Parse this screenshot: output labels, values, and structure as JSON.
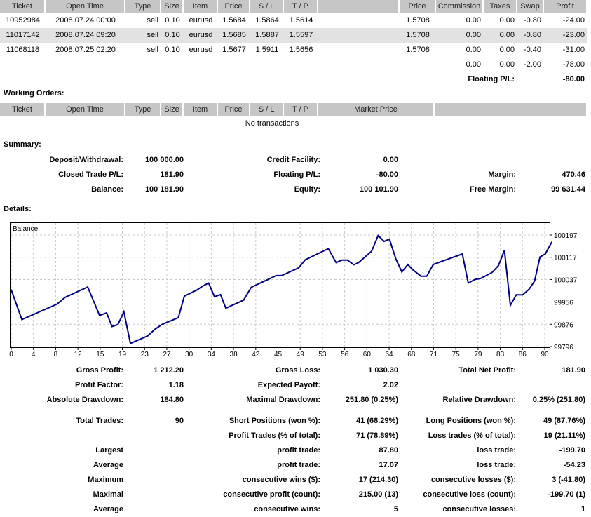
{
  "trades": {
    "headers": [
      "Ticket",
      "Open Time",
      "Type",
      "Size",
      "Item",
      "Price",
      "S / L",
      "T / P",
      "",
      "Price",
      "Commission",
      "Taxes",
      "Swap",
      "Profit"
    ],
    "rows": [
      [
        "10952984",
        "2008.07.24 00:00",
        "sell",
        "0.10",
        "eurusd",
        "1.5684",
        "1.5864",
        "1.5614",
        "",
        "1.5708",
        "0.00",
        "0.00",
        "-0.80",
        "-24.00"
      ],
      [
        "11017142",
        "2008.07.24 09:20",
        "sell",
        "0.10",
        "eurusd",
        "1.5685",
        "1.5887",
        "1.5597",
        "",
        "1.5708",
        "0.00",
        "0.00",
        "-0.80",
        "-23.00"
      ],
      [
        "11068118",
        "2008.07.25 02:20",
        "sell",
        "0.10",
        "eurusd",
        "1.5677",
        "1.5911",
        "1.5656",
        "",
        "1.5708",
        "0.00",
        "0.00",
        "-0.40",
        "-31.00"
      ]
    ],
    "totals": {
      "commission": "0.00",
      "taxes": "0.00",
      "swap": "-2.00",
      "profit": "-78.00"
    },
    "floating_label": "Floating P/L:",
    "floating_value": "-80.00"
  },
  "working_orders": {
    "title": "Working Orders:",
    "headers": [
      "Ticket",
      "Open Time",
      "Type",
      "Size",
      "Item",
      "Price",
      "S / L",
      "T / P",
      "Market Price",
      ""
    ],
    "empty_text": "No transactions"
  },
  "summary": {
    "title": "Summary:",
    "rows": [
      [
        "Deposit/Withdrawal:",
        "100 000.00",
        "Credit Facility:",
        "0.00",
        "",
        ""
      ],
      [
        "Closed Trade P/L:",
        "181.90",
        "Floating P/L:",
        "-80.00",
        "Margin:",
        "470.46"
      ],
      [
        "Balance:",
        "100 181.90",
        "Equity:",
        "100 101.90",
        "Free Margin:",
        "99 631.44"
      ]
    ]
  },
  "details": {
    "title": "Details:",
    "rows": [
      [
        "Gross Profit:",
        "1 212.20",
        "Gross Loss:",
        "1 030.30",
        "Total Net Profit:",
        "181.90"
      ],
      [
        "Profit Factor:",
        "1.18",
        "Expected Payoff:",
        "2.02",
        "",
        ""
      ],
      [
        "Absolute Drawdown:",
        "184.80",
        "Maximal Drawdown:",
        "251.80 (0.25%)",
        "Relative Drawdown:",
        "0.25% (251.80)"
      ],
      [
        "Total Trades:",
        "90",
        "Short Positions (won %):",
        "41 (68.29%)",
        "Long Positions (won %):",
        "49 (87.76%)"
      ],
      [
        "",
        "",
        "Profit Trades (% of total):",
        "71 (78.89%)",
        "Loss trades (% of total):",
        "19 (21.11%)"
      ],
      [
        "Largest",
        "",
        "profit trade:",
        "87.80",
        "loss trade:",
        "-199.70"
      ],
      [
        "Average",
        "",
        "profit trade:",
        "17.07",
        "loss trade:",
        "-54.23"
      ],
      [
        "Maximum",
        "",
        "consecutive wins ($):",
        "17 (214.30)",
        "consecutive losses ($):",
        "3 (-41.80)"
      ],
      [
        "Maximal",
        "",
        "consecutive profit (count):",
        "215.00 (13)",
        "consecutive loss (count):",
        "-199.70 (1)"
      ],
      [
        "Average",
        "",
        "consecutive wins:",
        "5",
        "consecutive losses:",
        "1"
      ]
    ]
  },
  "chart_data": {
    "type": "line",
    "title": "Balance",
    "xlabel": "",
    "ylabel": "",
    "xlim": [
      0,
      91
    ],
    "ylim": [
      99796,
      100197
    ],
    "grid": true,
    "line_color": "#000080",
    "x_ticks": [
      "0",
      "4",
      "8",
      "12",
      "15",
      "19",
      "23",
      "27",
      "30",
      "34",
      "38",
      "42",
      "45",
      "49",
      "53",
      "56",
      "60",
      "64",
      "68",
      "71",
      "75",
      "79",
      "83",
      "86",
      "90"
    ],
    "y_ticks": [
      "100197",
      "100117",
      "100037",
      "99956",
      "99876",
      "99796"
    ],
    "series": [
      {
        "name": "Balance",
        "x": [
          0,
          1.8,
          7.7,
          9.1,
          12.9,
          14.9,
          16.1,
          17,
          18,
          19,
          20.1,
          23,
          24.3,
          25.5,
          28.2,
          29.2,
          31.3,
          32.4,
          33.3,
          34.3,
          35.3,
          36.2,
          39.2,
          40.5,
          44.7,
          45.6,
          48.5,
          49.6,
          53.5,
          54.8,
          55.8,
          56.7,
          57.8,
          58.6,
          60.8,
          61.9,
          62.9,
          63.8,
          64.9,
          65.9,
          66.9,
          67.7,
          69.1,
          70.1,
          71.2,
          76.1,
          77.1,
          78.2,
          79.2,
          81.1,
          82.2,
          83.2,
          84.2,
          85.2,
          86.3,
          87.4,
          88.3,
          89.2,
          90.1,
          91.2
        ],
        "y": [
          100000,
          99893,
          99948,
          99973,
          100010,
          99908,
          99917,
          99868,
          99875,
          99921,
          99807,
          99834,
          99859,
          99876,
          99900,
          99977,
          99999,
          100015,
          100024,
          99975,
          99983,
          99934,
          99963,
          100009,
          100051,
          100051,
          100079,
          100108,
          100148,
          100098,
          100107,
          100107,
          100090,
          100098,
          100139,
          100195,
          100174,
          100182,
          100110,
          100064,
          100091,
          100073,
          100049,
          100049,
          100091,
          100129,
          100024,
          100037,
          100041,
          100062,
          100087,
          100142,
          99944,
          99982,
          99982,
          100003,
          100032,
          100118,
          100129,
          100172
        ]
      }
    ]
  }
}
